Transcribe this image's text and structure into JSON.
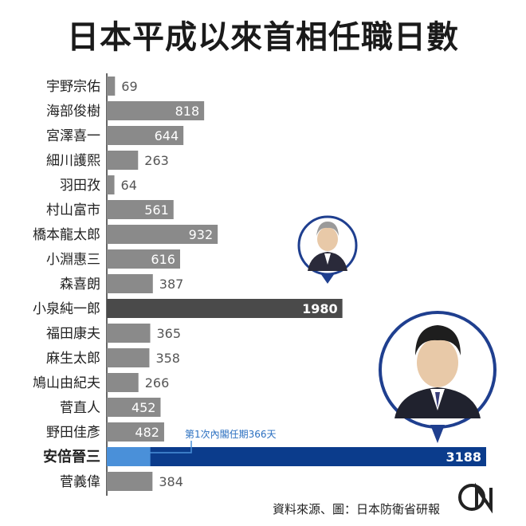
{
  "title": "日本平成以來首相任職日數",
  "chart_data": {
    "type": "bar",
    "orientation": "horizontal",
    "categories": [
      "宇野宗佑",
      "海部俊樹",
      "宮澤喜一",
      "細川護熙",
      "羽田孜",
      "村山富市",
      "橋本龍太郎",
      "小淵惠三",
      "森喜朗",
      "小泉純一郎",
      "福田康夫",
      "麻生太郎",
      "鳩山由紀夫",
      "菅直人",
      "野田佳彥",
      "安倍晉三",
      "菅義偉"
    ],
    "values": [
      69,
      818,
      644,
      263,
      64,
      561,
      932,
      616,
      387,
      1980,
      365,
      358,
      266,
      452,
      482,
      3188,
      384
    ],
    "value_labels": [
      "69",
      "818",
      "644",
      "263",
      "64",
      "561",
      "932",
      "616",
      "387",
      "1980",
      "365",
      "358",
      "266",
      "452",
      "482",
      "3188",
      "384"
    ],
    "highlight": {
      "小泉純一郎": "#4a4a4a",
      "安倍晉三": "#0b3c8c"
    },
    "annotation": {
      "category": "安倍晉三",
      "text": "第1次內閣任期366天",
      "value": 366,
      "color": "#4a90d9"
    },
    "bar_color": "#8a8a8a",
    "xlim": [
      0,
      3300
    ]
  },
  "footer": {
    "source": "資料來源、圖：日本防衛省研報"
  },
  "colors": {
    "grey_bar": "#8a8a8a",
    "koizumi_bar": "#4a4a4a",
    "abe_bar": "#0b3c8c",
    "abe_first_term": "#4a90d9",
    "circle_ring": "#1f3f8f"
  },
  "icons": {
    "koizumi_portrait": "portrait-icon",
    "abe_portrait": "portrait-icon",
    "logo": "cna-logo-icon"
  }
}
